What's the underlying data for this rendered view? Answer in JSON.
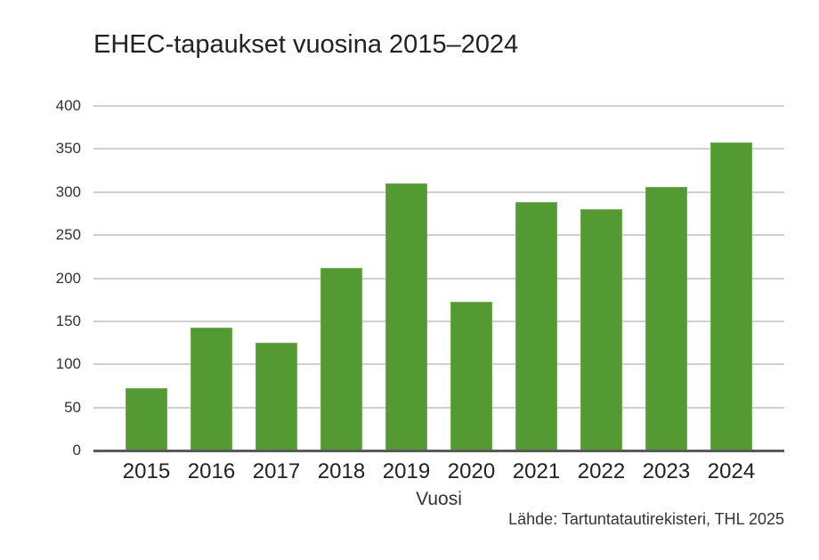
{
  "chart_data": {
    "type": "bar",
    "title": "EHEC-tapaukset vuosina 2015–2024",
    "xlabel": "Vuosi",
    "ylabel": "",
    "categories": [
      "2015",
      "2016",
      "2017",
      "2018",
      "2019",
      "2020",
      "2021",
      "2022",
      "2023",
      "2024"
    ],
    "values": [
      72,
      143,
      125,
      212,
      310,
      173,
      288,
      280,
      306,
      358
    ],
    "ylim": [
      0,
      400
    ],
    "yticks": [
      0,
      50,
      100,
      150,
      200,
      250,
      300,
      350,
      400
    ],
    "grid": true,
    "legend": null,
    "bar_color": "#529a31",
    "annotation": "Lähde: Tartuntatautirekisteri, THL 2025"
  },
  "labels": {
    "title": "EHEC-tapaukset vuosina 2015–2024",
    "xlabel": "Vuosi",
    "source": "Lähde: Tartuntatautirekisteri, THL 2025"
  }
}
